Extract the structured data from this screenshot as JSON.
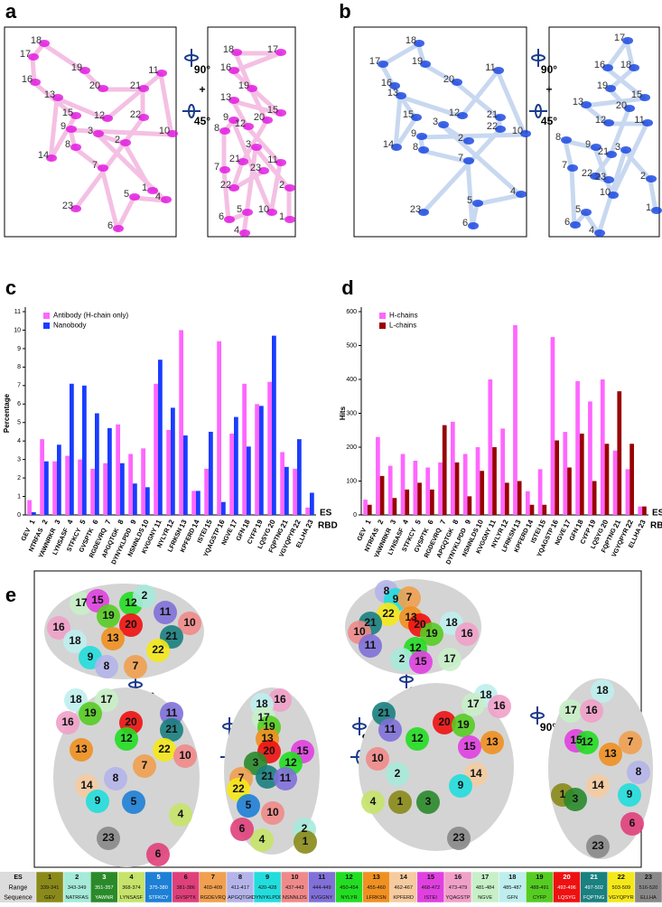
{
  "panel_labels": [
    "a",
    "b",
    "c",
    "d",
    "e"
  ],
  "rotations": [
    {
      "angle1": "90°",
      "plus": "+",
      "angle2": "45°"
    },
    {
      "angle1": "90°",
      "plus": "+",
      "angle2": "45°"
    },
    {
      "angle1": "90°"
    },
    {
      "angle1": "90°"
    },
    {
      "angle1": "90°",
      "plus": "+",
      "angle2": "45°"
    },
    {
      "angle1": "90°",
      "plus": "+",
      "angle2": "45°"
    },
    {
      "angle1": "90°"
    }
  ],
  "structures": [
    {
      "labels": [
        "18",
        "17",
        "19",
        "16",
        "13",
        "20",
        "21",
        "11",
        "15",
        "12",
        "22",
        "10",
        "9",
        "8",
        "3",
        "2",
        "14",
        "7",
        "5",
        "1",
        "4",
        "23",
        "6"
      ]
    },
    {
      "labels": [
        "18",
        "17",
        "16",
        "19",
        "15",
        "13",
        "9",
        "20",
        "8",
        "12",
        "3",
        "7",
        "11",
        "21",
        "23",
        "22",
        "2",
        "5",
        "10",
        "6",
        "1",
        "4"
      ]
    },
    {
      "labels": [
        "18",
        "17",
        "19",
        "16",
        "20",
        "11",
        "13",
        "15",
        "12",
        "21",
        "3",
        "22",
        "2",
        "10",
        "14",
        "8",
        "9",
        "7",
        "5",
        "4",
        "23",
        "6"
      ]
    },
    {
      "labels": [
        "17",
        "16",
        "18",
        "15",
        "19",
        "13",
        "12",
        "20",
        "11",
        "8",
        "9",
        "21",
        "3",
        "7",
        "22",
        "23",
        "2",
        "10",
        "5",
        "6",
        "4",
        "1"
      ]
    },
    {
      "labels": [
        "17",
        "15",
        "12",
        "2",
        "16",
        "19",
        "11",
        "10",
        "20",
        "21",
        "18",
        "13",
        "22",
        "9",
        "8",
        "7"
      ]
    },
    {
      "labels": [
        "8",
        "9",
        "7",
        "22",
        "21",
        "10",
        "13",
        "18",
        "20",
        "19",
        "16",
        "11",
        "12",
        "2",
        "15",
        "17"
      ]
    },
    {
      "labels": [
        "18",
        "17",
        "16",
        "19",
        "20",
        "11",
        "12",
        "21",
        "13",
        "22",
        "10",
        "8",
        "7",
        "14",
        "9",
        "5",
        "4",
        "6",
        "23"
      ]
    },
    {
      "labels": [
        "16",
        "18",
        "17",
        "19",
        "13",
        "20",
        "15",
        "12",
        "3",
        "21",
        "11",
        "7",
        "22",
        "5",
        "10",
        "2",
        "1",
        "4",
        "6"
      ]
    },
    {
      "labels": [
        "21",
        "11",
        "20",
        "19",
        "18",
        "17",
        "16",
        "12",
        "15",
        "13",
        "10",
        "2",
        "14",
        "9",
        "4",
        "1",
        "3",
        "23"
      ]
    },
    {
      "labels": [
        "18",
        "17",
        "16",
        "15",
        "12",
        "13",
        "7",
        "8",
        "1",
        "14",
        "9",
        "3",
        "6",
        "23"
      ]
    }
  ],
  "chart_data": [
    {
      "type": "bar",
      "ylabel": "Percentage",
      "legend": "upper left",
      "categories": [
        "GEV",
        "NTRFAS",
        "YAWNRKR",
        "LYNSASF",
        "STFKCY",
        "GVSPTK",
        "RGDEVRQ",
        "APGQTGK",
        "DYNYKLPDD",
        "NSNNLDS",
        "KVGGNY",
        "NYLYR",
        "LFRKSN",
        "KPFERD",
        "ISTEI",
        "YQAGSTP",
        "NGVE",
        "GFN",
        "CYFP",
        "LQSYG",
        "FQPTNG",
        "VGYQPYR",
        "ELLHA"
      ],
      "category_ids": [
        "1",
        "2",
        "3",
        "4",
        "5",
        "6",
        "7",
        "8",
        "9",
        "10",
        "11",
        "12",
        "13",
        "14",
        "15",
        "16",
        "17",
        "18",
        "19",
        "20",
        "21",
        "22",
        "23"
      ],
      "x_labels": [
        "ES",
        "RBD"
      ],
      "ylim": [
        0,
        11
      ],
      "yticks": [
        0,
        1,
        2,
        3,
        4,
        5,
        6,
        7,
        8,
        9,
        10,
        11
      ],
      "series": [
        {
          "name": "Antibody (H-chain only)",
          "color": "#ff66ff",
          "values": [
            0.8,
            4.1,
            2.9,
            3.2,
            3.0,
            2.5,
            2.8,
            4.9,
            3.3,
            3.6,
            7.1,
            4.6,
            10.0,
            1.3,
            2.5,
            9.4,
            4.4,
            7.1,
            6.0,
            7.2,
            3.4,
            2.5,
            0.4
          ]
        },
        {
          "name": "Nanobody",
          "color": "#1a3cff",
          "values": [
            0.15,
            2.9,
            3.8,
            7.1,
            7.0,
            5.5,
            4.7,
            2.8,
            1.7,
            1.5,
            8.4,
            5.8,
            4.3,
            1.3,
            4.5,
            0.7,
            5.3,
            3.7,
            5.9,
            9.7,
            2.6,
            4.1,
            1.2
          ]
        }
      ]
    },
    {
      "type": "bar",
      "ylabel": "Hits",
      "legend": "upper left",
      "categories": [
        "GEV",
        "NTRFAS",
        "YAWNRKR",
        "LYNSASF",
        "STFKCY",
        "GVSPTK",
        "RGDEVRQ",
        "APGQTGK",
        "DYNYKLPDD",
        "NSNNLDS",
        "KVGGNY",
        "NYLYR",
        "LFRKSN",
        "KPFERD",
        "ISTEI",
        "YQAGSTP",
        "NGVE",
        "GFN",
        "CYFP",
        "LQSYG",
        "FQPTNG",
        "VGYQPYR",
        "ELLHA"
      ],
      "category_ids": [
        "1",
        "2",
        "3",
        "4",
        "5",
        "6",
        "7",
        "8",
        "9",
        "10",
        "11",
        "12",
        "13",
        "14",
        "15",
        "16",
        "17",
        "18",
        "19",
        "20",
        "21",
        "22",
        "23"
      ],
      "x_labels": [
        "ES",
        "RBD"
      ],
      "ylim": [
        0,
        600
      ],
      "yticks": [
        0,
        100,
        200,
        300,
        400,
        500,
        600
      ],
      "series": [
        {
          "name": "H-chains",
          "color": "#ff66ff",
          "values": [
            45,
            230,
            145,
            180,
            160,
            140,
            155,
            275,
            180,
            200,
            400,
            255,
            560,
            70,
            135,
            525,
            245,
            395,
            335,
            400,
            190,
            135,
            25
          ]
        },
        {
          "name": "L-chains",
          "color": "#990000",
          "values": [
            30,
            115,
            50,
            75,
            95,
            75,
            265,
            155,
            55,
            130,
            200,
            95,
            100,
            30,
            30,
            220,
            140,
            240,
            100,
            210,
            365,
            210,
            25
          ]
        }
      ]
    }
  ],
  "table": {
    "header": [
      "ES",
      "Range",
      "Sequence"
    ],
    "columns": [
      {
        "es": "1",
        "range": "339-341",
        "sequence": "GEV",
        "color": "#8a8a1a"
      },
      {
        "es": "2",
        "range": "343-349",
        "sequence": "NATRFAS",
        "color": "#a6ead9"
      },
      {
        "es": "3",
        "range": "351-357",
        "sequence": "YAWNR",
        "color": "#2a8a2a"
      },
      {
        "es": "4",
        "range": "368-374",
        "sequence": "LYNSASF",
        "color": "#c6e36a"
      },
      {
        "es": "5",
        "range": "375-380",
        "sequence": "STFKCY",
        "color": "#1e7fd6"
      },
      {
        "es": "6",
        "range": "381-386",
        "sequence": "GVSPTK",
        "color": "#e0407a"
      },
      {
        "es": "7",
        "range": "403-409",
        "sequence": "RGDEVRQ",
        "color": "#f0a050"
      },
      {
        "es": "8",
        "range": "411-417",
        "sequence": "APGQTGK",
        "color": "#b4b4ea"
      },
      {
        "es": "9",
        "range": "420-428",
        "sequence": "DYNYKLPDD",
        "color": "#22dddd"
      },
      {
        "es": "10",
        "range": "437-443",
        "sequence": "NSNNLDS",
        "color": "#f08a8a"
      },
      {
        "es": "11",
        "range": "444-449",
        "sequence": "KVGGNY",
        "color": "#8070d8"
      },
      {
        "es": "12",
        "range": "450-454",
        "sequence": "NYLYR",
        "color": "#22dd22"
      },
      {
        "es": "13",
        "range": "455-460",
        "sequence": "LFRKSN",
        "color": "#f09020"
      },
      {
        "es": "14",
        "range": "462-467",
        "sequence": "KPFERD",
        "color": "#f5cba0"
      },
      {
        "es": "15",
        "range": "468-472",
        "sequence": "ISTEI",
        "color": "#e040e0"
      },
      {
        "es": "16",
        "range": "473-479",
        "sequence": "YQAGSTP",
        "color": "#f0a0c8"
      },
      {
        "es": "17",
        "range": "481-484",
        "sequence": "NGVE",
        "color": "#c8f0c8"
      },
      {
        "es": "18",
        "range": "485-487",
        "sequence": "GFN",
        "color": "#bfeeee"
      },
      {
        "es": "19",
        "range": "488-491",
        "sequence": "CYFP",
        "color": "#55cc22"
      },
      {
        "es": "20",
        "range": "492-496",
        "sequence": "LQSYG",
        "color": "#ee1111"
      },
      {
        "es": "21",
        "range": "497-502",
        "sequence": "FQPTNG",
        "color": "#1a8080"
      },
      {
        "es": "22",
        "range": "503-509",
        "sequence": "VGYQPYR",
        "color": "#f5e81a"
      },
      {
        "es": "23",
        "range": "516-520",
        "sequence": "ELLHA",
        "color": "#888888"
      }
    ]
  }
}
